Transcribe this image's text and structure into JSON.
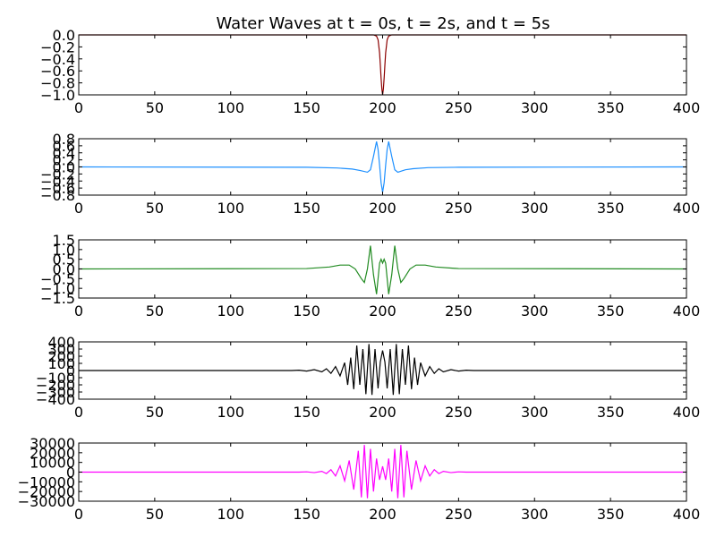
{
  "chart_data": {
    "type": "line",
    "title": "Water Waves at t = 0s, t = 2s, and t = 5s",
    "xlim": [
      0,
      400
    ],
    "xticks": [
      0,
      50,
      100,
      150,
      200,
      250,
      300,
      350,
      400
    ],
    "xtick_labels": [
      "0",
      "50",
      "100",
      "150",
      "200",
      "250",
      "300",
      "350",
      "400"
    ],
    "panels": [
      {
        "name": "panel-1",
        "ylim": [
          -1.0,
          0.0
        ],
        "yticks": [
          -1.0,
          -0.8,
          -0.6,
          -0.4,
          -0.2,
          0.0
        ],
        "ytick_labels": [
          "−1.0",
          "−0.8",
          "−0.6",
          "−0.4",
          "−0.2",
          "0.0"
        ],
        "color": "#8b0000",
        "series": {
          "x": [
            0,
            150,
            190,
            194,
            196,
            197,
            198,
            198.5,
            199,
            199.5,
            200,
            200.5,
            201,
            201.5,
            202,
            203,
            204,
            206,
            210,
            250,
            400
          ],
          "y": [
            0,
            0,
            0,
            0,
            -0.02,
            -0.08,
            -0.3,
            -0.5,
            -0.72,
            -0.9,
            -1.0,
            -0.9,
            -0.72,
            -0.5,
            -0.3,
            -0.08,
            -0.02,
            0,
            0,
            0,
            0
          ]
        }
      },
      {
        "name": "panel-2",
        "ylim": [
          -0.8,
          0.8
        ],
        "yticks": [
          -0.8,
          -0.6,
          -0.4,
          -0.2,
          0.0,
          0.2,
          0.4,
          0.6,
          0.8
        ],
        "ytick_labels": [
          "−0.8",
          "−0.6",
          "−0.4",
          "−0.2",
          "0.0",
          "0.2",
          "0.4",
          "0.6",
          "0.8"
        ],
        "color": "#1e90ff",
        "series": {
          "x": [
            0,
            150,
            170,
            180,
            185,
            190,
            192,
            194,
            196,
            197,
            198,
            199,
            200,
            201,
            202,
            203,
            204,
            206,
            208,
            210,
            215,
            220,
            230,
            250,
            400
          ],
          "y": [
            0,
            -0.01,
            -0.03,
            -0.06,
            -0.1,
            -0.15,
            -0.08,
            0.3,
            0.72,
            0.5,
            0.05,
            -0.45,
            -0.72,
            -0.45,
            0.05,
            0.5,
            0.72,
            0.3,
            -0.08,
            -0.15,
            -0.08,
            -0.05,
            -0.02,
            -0.01,
            0
          ]
        }
      },
      {
        "name": "panel-3",
        "ylim": [
          -1.5,
          1.5
        ],
        "yticks": [
          -1.5,
          -1.0,
          -0.5,
          0.0,
          0.5,
          1.0,
          1.5
        ],
        "ytick_labels": [
          "−1.5",
          "−1.0",
          "−0.5",
          "0.0",
          "0.5",
          "1.0",
          "1.5"
        ],
        "color": "#228b22",
        "series": {
          "x": [
            0,
            150,
            165,
            172,
            178,
            182,
            186,
            188,
            190,
            192,
            194,
            196,
            198,
            199,
            200,
            201,
            202,
            204,
            206,
            208,
            210,
            212,
            214,
            218,
            222,
            228,
            235,
            250,
            400
          ],
          "y": [
            0,
            0.02,
            0.1,
            0.2,
            0.2,
            0.0,
            -0.5,
            -0.7,
            0.0,
            1.2,
            -0.3,
            -1.3,
            0.3,
            0.5,
            0.3,
            0.5,
            0.3,
            -1.3,
            -0.3,
            1.2,
            0.0,
            -0.7,
            -0.5,
            0.0,
            0.2,
            0.2,
            0.1,
            0.02,
            0
          ]
        }
      },
      {
        "name": "panel-4",
        "ylim": [
          -400,
          400
        ],
        "yticks": [
          -400,
          -300,
          -200,
          -100,
          0,
          100,
          200,
          300,
          400
        ],
        "ytick_labels": [
          "−400",
          "−300",
          "−200",
          "−100",
          "0",
          "100",
          "200",
          "300",
          "400"
        ],
        "color": "#000000",
        "series": {
          "x": [
            0,
            140,
            145,
            150,
            155,
            160,
            163,
            166,
            169,
            172,
            175,
            177,
            179,
            181,
            183,
            185,
            187,
            189,
            191,
            193,
            195,
            197,
            198.5,
            200,
            201.5,
            203,
            205,
            207,
            209,
            211,
            213,
            215,
            217,
            219,
            221,
            223,
            225,
            228,
            231,
            234,
            237,
            240,
            245,
            250,
            255,
            260,
            400
          ],
          "y": [
            0,
            0,
            5,
            -8,
            12,
            -18,
            25,
            -40,
            55,
            -75,
            110,
            -200,
            180,
            -260,
            350,
            -200,
            300,
            -330,
            370,
            -340,
            300,
            -250,
            120,
            280,
            120,
            -250,
            300,
            -340,
            370,
            -330,
            300,
            -200,
            350,
            -260,
            180,
            -200,
            110,
            -75,
            55,
            -40,
            25,
            -18,
            12,
            -8,
            5,
            0,
            0
          ]
        }
      },
      {
        "name": "panel-5",
        "ylim": [
          -30000,
          30000
        ],
        "yticks": [
          -30000,
          -20000,
          -10000,
          0,
          10000,
          20000,
          30000
        ],
        "ytick_labels": [
          "−30000",
          "−20000",
          "−10000",
          "0",
          "10000",
          "20000",
          "30000"
        ],
        "color": "#ff00ff",
        "series": {
          "x": [
            0,
            145,
            150,
            155,
            160,
            163,
            166,
            169,
            172,
            175,
            178,
            181,
            184,
            186,
            188,
            190,
            192,
            194,
            196,
            198,
            200,
            202,
            204,
            206,
            208,
            210,
            212,
            214,
            216,
            219,
            222,
            225,
            228,
            231,
            234,
            237,
            240,
            245,
            250,
            255,
            400
          ],
          "y": [
            0,
            0,
            300,
            -500,
            800,
            -1500,
            2500,
            -4000,
            6500,
            -9000,
            12000,
            -18000,
            22000,
            -26000,
            28000,
            -27000,
            24000,
            -20000,
            14000,
            -8000,
            6000,
            -8000,
            14000,
            -20000,
            24000,
            -27000,
            28000,
            -26000,
            22000,
            -18000,
            12000,
            -9000,
            6500,
            -4000,
            2500,
            -1500,
            800,
            -500,
            300,
            0,
            0
          ]
        }
      }
    ]
  }
}
